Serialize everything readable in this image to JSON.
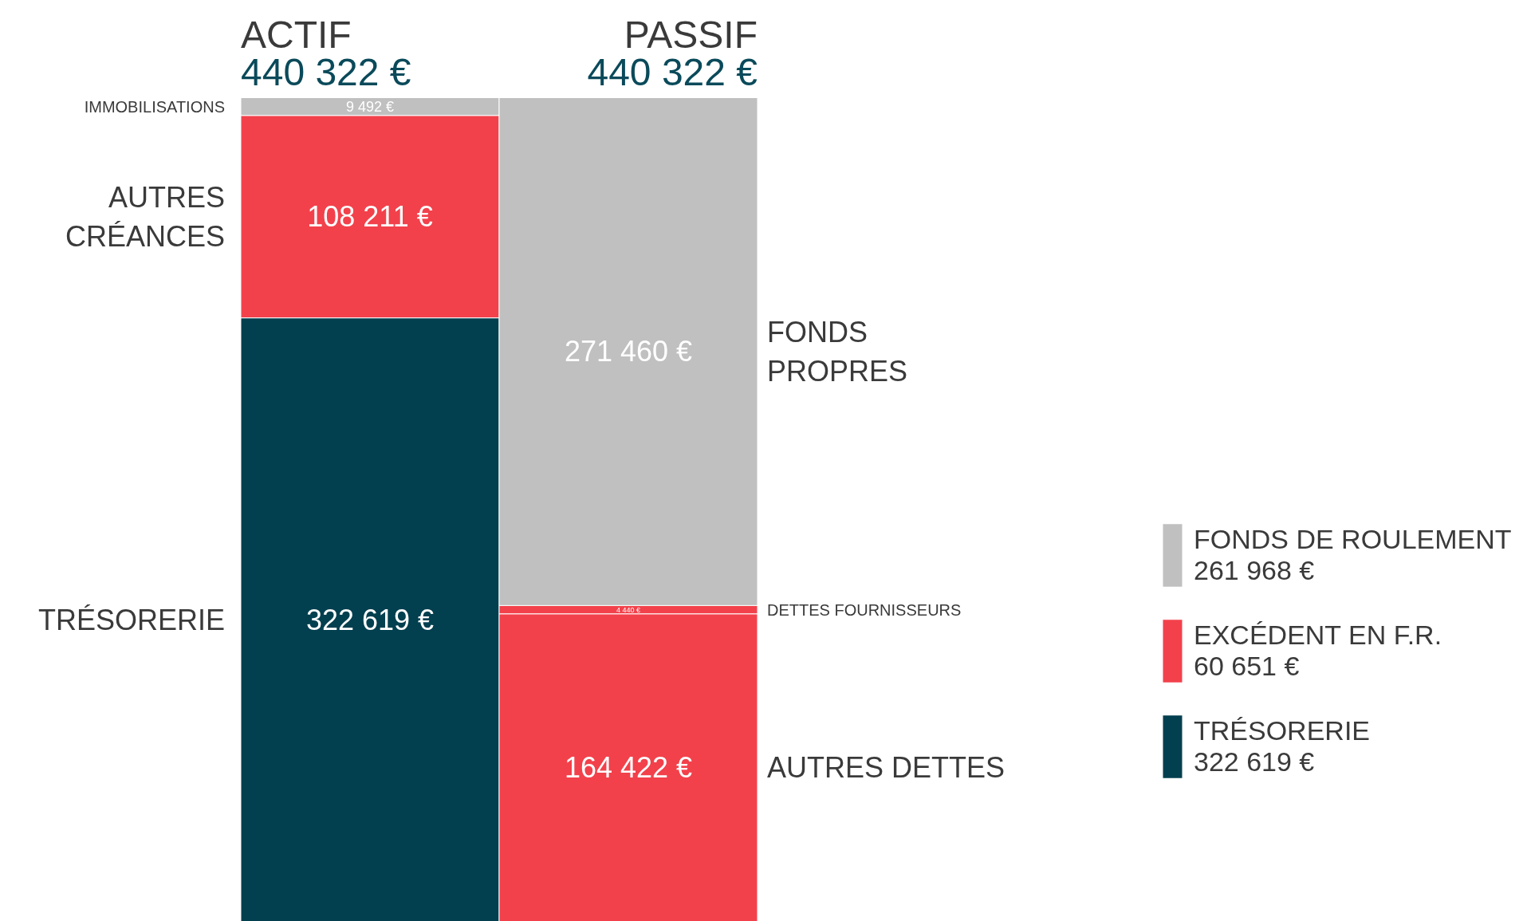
{
  "chart_data": [
    {
      "type": "bar",
      "stacked": true,
      "categories": [
        "ACTIF",
        "PASSIF"
      ],
      "totals": [
        "440 322 €",
        "440 322 €"
      ],
      "series": [
        {
          "colors": [
            "#023f4f",
            "#f2414b"
          ],
          "values": [
            322619,
            164422
          ],
          "value_labels": [
            "322 619 €",
            "164 422 €"
          ]
        },
        {
          "colors": [
            "#f2414b",
            "#f2414b"
          ],
          "values": [
            108211,
            4440
          ],
          "value_labels": [
            "108 211 €",
            "4 440 €"
          ]
        },
        {
          "colors": [
            "#c0c0c0",
            "#c0c0c0"
          ],
          "values": [
            9492,
            271460
          ],
          "value_labels": [
            "9 492 €",
            "271 460 €"
          ]
        }
      ],
      "annotations": [
        "TRÉSORERIE",
        "AUTRES DETTES",
        "AUTRES\nCRÉANCES",
        "DETTES FOURNISSEURS",
        "IMMOBILISATIONS",
        "FONDS\nPROPRES"
      ]
    },
    {
      "type": "other",
      "categories": [
        "FONDS DE ROULEMENT",
        "EXCÉDENT EN F.R.",
        "TRÉSORERIE"
      ],
      "annotations": [
        "261 968 €",
        "60 651 €",
        "322 619 €"
      ],
      "colors": [
        "#c0c0c0",
        "#f2414b",
        "#023f4f"
      ]
    }
  ]
}
